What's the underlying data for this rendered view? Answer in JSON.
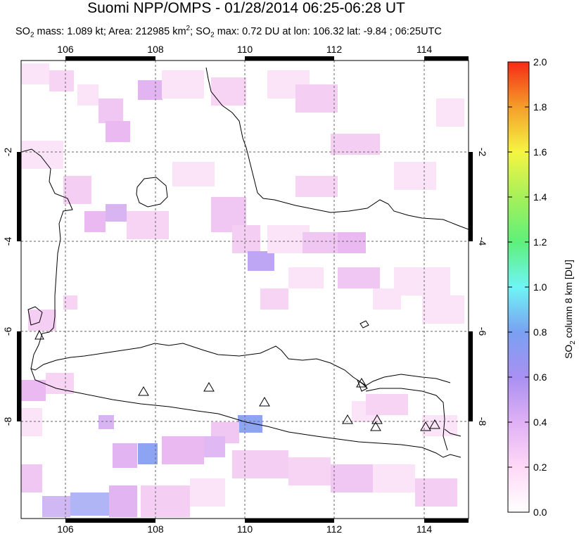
{
  "title": "Suomi NPP/OMPS - 01/28/2014 06:25-06:28 UT",
  "subtitle": {
    "prefix": "SO",
    "mass_text": " mass: 1.089 kt; Area: 212985 km",
    "sup": "2",
    "rest": "; SO",
    "rest2": " max: 0.72 DU at lon: 106.32 lat: -9.84 ; 06:25UTC"
  },
  "map": {
    "lon_ticks": [
      "106",
      "108",
      "110",
      "112",
      "114"
    ],
    "lat_ticks": [
      "-2",
      "-4",
      "-6",
      "-8"
    ],
    "lon_range": [
      104.9,
      115.0
    ],
    "lat_range": [
      -10.1,
      0.0
    ],
    "volcano_marker": "triangle-icon",
    "volcano_count": 10
  },
  "colorbar": {
    "label_prefix": "SO",
    "label_suffix": " column 8 km [DU]",
    "ticks": [
      "0.0",
      "0.2",
      "0.4",
      "0.6",
      "0.8",
      "1.0",
      "1.2",
      "1.4",
      "1.6",
      "1.8",
      "2.0"
    ],
    "colors": [
      "#ffffff",
      "#ffd9f7",
      "#d8a8f5",
      "#a990f2",
      "#7aa8f2",
      "#6ff5f5",
      "#5ef07a",
      "#a6f05a",
      "#f5f542",
      "#f59e2a",
      "#f52a16"
    ]
  }
}
